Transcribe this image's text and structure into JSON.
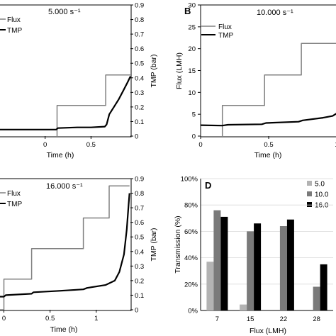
{
  "chart_data": [
    {
      "type": "line",
      "panel_label": "",
      "condition_label": "5.000 s⁻¹",
      "xlabel": "Time (h)",
      "ylabel": "",
      "y2label": "TMP (bar)",
      "xlim": [
        -0.5,
        0.93
      ],
      "ylim2": [
        0,
        0.9
      ],
      "xticks": [
        "0",
        "0.5"
      ],
      "x_tick_values": [
        0,
        0.5
      ],
      "y2ticks": [
        "0",
        "0.1",
        "0.2",
        "0.3",
        "0.4",
        "0.5",
        "0.6",
        "0.7",
        "0.8",
        "0.9"
      ],
      "legend": [
        "Flux",
        "TMP"
      ],
      "series": [
        {
          "name": "Flux",
          "color": "#808080",
          "axis": "y2",
          "x": [
            0.13,
            0.13,
            0.66,
            0.66,
            0.93
          ],
          "y": [
            0,
            0.21,
            0.21,
            0.42,
            0.42
          ]
        },
        {
          "name": "TMP",
          "color": "#000000",
          "axis": "y2",
          "x": [
            -0.5,
            0.12,
            0.14,
            0.35,
            0.5,
            0.65,
            0.67,
            0.7,
            0.75,
            0.8,
            0.85,
            0.9,
            0.93
          ],
          "y": [
            0.045,
            0.045,
            0.055,
            0.06,
            0.06,
            0.065,
            0.08,
            0.15,
            0.2,
            0.25,
            0.31,
            0.37,
            0.41
          ]
        }
      ]
    },
    {
      "type": "line",
      "panel_label": "B",
      "condition_label": "10.000 s⁻¹",
      "xlabel": "Time (h)",
      "ylabel": "Flux (LMH)",
      "xlim": [
        0,
        1.0
      ],
      "ylim": [
        0,
        30
      ],
      "xticks": [
        "0",
        "0.5",
        "1"
      ],
      "x_tick_values": [
        0,
        0.5,
        1
      ],
      "yticks": [
        "0",
        "5",
        "10",
        "15",
        "20",
        "25",
        "30"
      ],
      "legend": [
        "Flux",
        "TMP"
      ],
      "series": [
        {
          "name": "Flux",
          "color": "#808080",
          "axis": "y",
          "x": [
            0.16,
            0.16,
            0.47,
            0.47,
            0.74,
            0.74,
            1.0,
            1.0
          ],
          "y": [
            0,
            7,
            7,
            14,
            14,
            21.2,
            21.2,
            28
          ]
        },
        {
          "name": "TMP",
          "color": "#000000",
          "axis": "y",
          "x": [
            0,
            0.16,
            0.2,
            0.45,
            0.48,
            0.72,
            0.75,
            0.9,
            0.97,
            1.0
          ],
          "y": [
            2.5,
            2.4,
            2.6,
            2.7,
            3.0,
            3.3,
            3.6,
            4.2,
            4.6,
            5.2
          ]
        }
      ]
    },
    {
      "type": "line",
      "panel_label": "",
      "condition_label": "16.000 s⁻¹",
      "xlabel": "Time (h)",
      "ylabel": "",
      "y2label": "TMP (bar)",
      "xlim": [
        -0.05,
        1.37
      ],
      "ylim2": [
        0,
        0.9
      ],
      "xticks": [
        "0",
        "0.5",
        "1"
      ],
      "x_tick_values": [
        0,
        0.5,
        1
      ],
      "y2ticks": [
        "0",
        "0.1",
        "0.2",
        "0.3",
        "0.4",
        "0.5",
        "0.6",
        "0.7",
        "0.8",
        "0.9"
      ],
      "legend": [
        "Flux",
        "TMP"
      ],
      "series": [
        {
          "name": "Flux",
          "color": "#808080",
          "axis": "y2",
          "x": [
            -0.05,
            0.0,
            0.0,
            0.3,
            0.3,
            0.86,
            0.86,
            1.14,
            1.14,
            1.36
          ],
          "y": [
            0,
            0,
            0.21,
            0.21,
            0.42,
            0.42,
            0.63,
            0.63,
            0.85,
            0.85
          ]
        },
        {
          "name": "TMP",
          "color": "#000000",
          "axis": "y2",
          "x": [
            -0.05,
            0.0,
            0.02,
            0.3,
            0.32,
            0.6,
            0.86,
            0.9,
            1.1,
            1.2,
            1.25,
            1.3,
            1.33,
            1.35,
            1.36
          ],
          "y": [
            0.09,
            0.09,
            0.1,
            0.11,
            0.12,
            0.13,
            0.14,
            0.15,
            0.17,
            0.2,
            0.26,
            0.38,
            0.55,
            0.72,
            0.8
          ]
        }
      ]
    },
    {
      "type": "bar",
      "panel_label": "D",
      "xlabel": "Flux (LMH)",
      "ylabel": "Transmission (%)",
      "ylim": [
        0,
        100
      ],
      "yticks": [
        "0%",
        "20%",
        "40%",
        "60%",
        "80%",
        "100%"
      ],
      "categories": [
        "7",
        "15",
        "22",
        "28"
      ],
      "grid": true,
      "legend_position": "top-right",
      "series": [
        {
          "name": "5.0",
          "color": "#b3b3b3",
          "values": [
            37,
            4.5,
            null,
            null
          ]
        },
        {
          "name": "10.0",
          "color": "#7a7a7a",
          "values": [
            76,
            60,
            64,
            18
          ]
        },
        {
          "name": "16.0",
          "color": "#000000",
          "values": [
            71,
            66,
            69,
            35
          ]
        }
      ]
    }
  ]
}
